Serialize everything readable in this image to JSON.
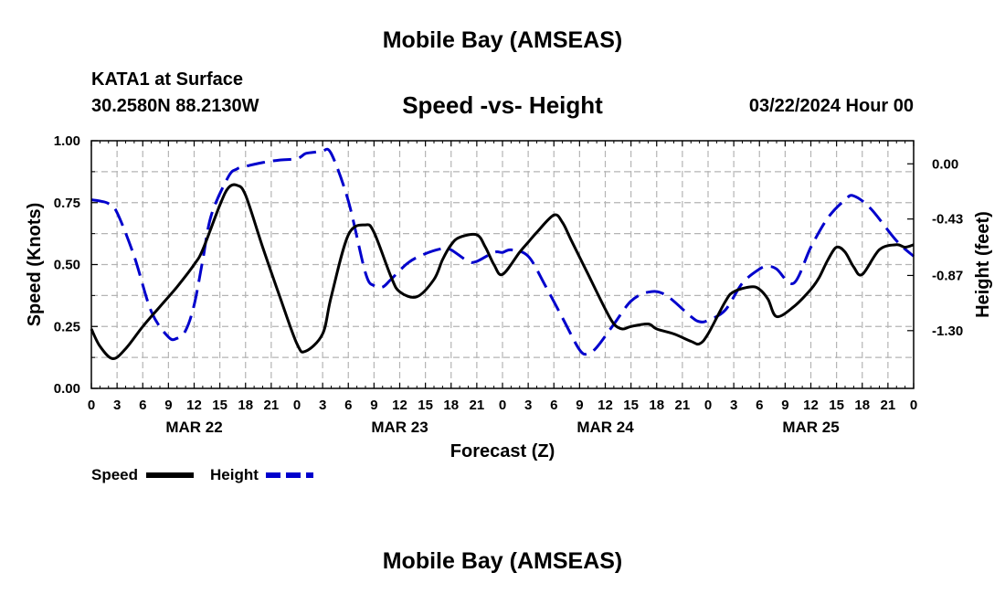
{
  "header": {
    "site_title": "Mobile Bay (AMSEAS)",
    "station": "KATA1 at Surface",
    "coordinates": "30.2580N  88.2130W",
    "datetime": "03/22/2024 Hour 00"
  },
  "footer": {
    "site_title": "Mobile Bay (AMSEAS)"
  },
  "chart_data": {
    "type": "line",
    "title": "Speed -vs- Height",
    "xlabel": "Forecast (Z)",
    "ylabel_left": "Speed (Knots)",
    "ylabel_right": "Height (feet)",
    "x_unit": "forecast hour",
    "xlim": [
      0,
      96
    ],
    "ylim_left": [
      0,
      1.0
    ],
    "ylim_right": [
      -1.75,
      0.18
    ],
    "grid": true,
    "y_ticks_left": [
      "0.00",
      "0.25",
      "0.50",
      "0.75",
      "1.00"
    ],
    "y_tick_values_left": [
      0,
      0.25,
      0.5,
      0.75,
      1.0
    ],
    "y_ticks_right": [
      "0.00",
      "-0.43",
      "-0.87",
      "-1.30"
    ],
    "y_tick_values_right": [
      0.0,
      -0.43,
      -0.87,
      -1.3
    ],
    "x_ticks": [
      "0",
      "3",
      "6",
      "9",
      "12",
      "15",
      "18",
      "21",
      "0",
      "3",
      "6",
      "9",
      "12",
      "15",
      "18",
      "21",
      "0",
      "3",
      "6",
      "9",
      "12",
      "15",
      "18",
      "21",
      "0",
      "3",
      "6",
      "9",
      "12",
      "15",
      "18",
      "21",
      "0"
    ],
    "x_tick_values": [
      0,
      3,
      6,
      9,
      12,
      15,
      18,
      21,
      24,
      27,
      30,
      33,
      36,
      39,
      42,
      45,
      48,
      51,
      54,
      57,
      60,
      63,
      66,
      69,
      72,
      75,
      78,
      81,
      84,
      87,
      90,
      93,
      96
    ],
    "date_labels": [
      "MAR 22",
      "MAR 23",
      "MAR 24",
      "MAR 25"
    ],
    "date_label_hours": [
      12,
      36,
      60,
      84
    ],
    "legend": {
      "position": "bottom-left",
      "speed_label": "Speed",
      "height_label": "Height"
    },
    "series": [
      {
        "name": "Speed",
        "axis": "left",
        "color": "#000000",
        "dash": "solid",
        "x": [
          0,
          1,
          2.5,
          4,
          6,
          8,
          10,
          12,
          13,
          15,
          16,
          17,
          18,
          20,
          22,
          24,
          25,
          27,
          28,
          30,
          32,
          33,
          35,
          36,
          38,
          40,
          41,
          42,
          43,
          45,
          46,
          47,
          48,
          50,
          51,
          52,
          54,
          55,
          56,
          58,
          60,
          61,
          62,
          63,
          65,
          66,
          68,
          70,
          71,
          72,
          74,
          75,
          77,
          78,
          79,
          80,
          82,
          84,
          85,
          86,
          87,
          88,
          89,
          90,
          92,
          94,
          95,
          96
        ],
        "y": [
          0.24,
          0.17,
          0.12,
          0.16,
          0.25,
          0.33,
          0.41,
          0.5,
          0.56,
          0.74,
          0.81,
          0.82,
          0.78,
          0.57,
          0.37,
          0.18,
          0.15,
          0.22,
          0.37,
          0.62,
          0.66,
          0.63,
          0.45,
          0.39,
          0.37,
          0.44,
          0.52,
          0.58,
          0.61,
          0.62,
          0.57,
          0.5,
          0.46,
          0.55,
          0.59,
          0.63,
          0.7,
          0.67,
          0.6,
          0.46,
          0.32,
          0.26,
          0.24,
          0.25,
          0.26,
          0.24,
          0.22,
          0.19,
          0.18,
          0.22,
          0.35,
          0.39,
          0.41,
          0.4,
          0.36,
          0.29,
          0.33,
          0.4,
          0.45,
          0.52,
          0.57,
          0.55,
          0.49,
          0.46,
          0.56,
          0.58,
          0.57,
          0.58
        ]
      },
      {
        "name": "Height",
        "axis": "right",
        "color": "#0000cc",
        "dash": "dashed",
        "x": [
          0,
          1,
          2,
          3,
          5,
          7,
          9,
          10,
          11,
          12,
          13,
          14,
          16,
          17,
          18,
          20,
          22,
          24,
          25,
          26,
          27,
          28,
          30,
          32,
          33,
          34,
          35,
          37,
          39,
          41,
          42,
          44,
          45,
          47,
          48,
          49,
          51,
          53,
          55,
          57,
          58,
          59,
          61,
          63,
          65,
          67,
          70,
          71,
          72,
          74,
          76,
          78,
          79,
          80,
          82,
          84,
          86,
          88,
          89,
          91,
          94,
          96
        ],
        "y": [
          -0.28,
          -0.29,
          -0.31,
          -0.38,
          -0.72,
          -1.15,
          -1.35,
          -1.36,
          -1.3,
          -1.1,
          -0.75,
          -0.4,
          -0.1,
          -0.04,
          -0.02,
          0.01,
          0.03,
          0.04,
          0.08,
          0.09,
          0.1,
          0.08,
          -0.29,
          -0.85,
          -0.95,
          -0.96,
          -0.9,
          -0.77,
          -0.7,
          -0.66,
          -0.67,
          -0.76,
          -0.76,
          -0.69,
          -0.69,
          -0.67,
          -0.72,
          -0.95,
          -1.2,
          -1.45,
          -1.48,
          -1.43,
          -1.25,
          -1.07,
          -1.0,
          -1.02,
          -1.19,
          -1.23,
          -1.22,
          -1.14,
          -0.93,
          -0.82,
          -0.8,
          -0.82,
          -0.93,
          -0.65,
          -0.42,
          -0.28,
          -0.25,
          -0.35,
          -0.6,
          -0.72
        ]
      }
    ]
  }
}
